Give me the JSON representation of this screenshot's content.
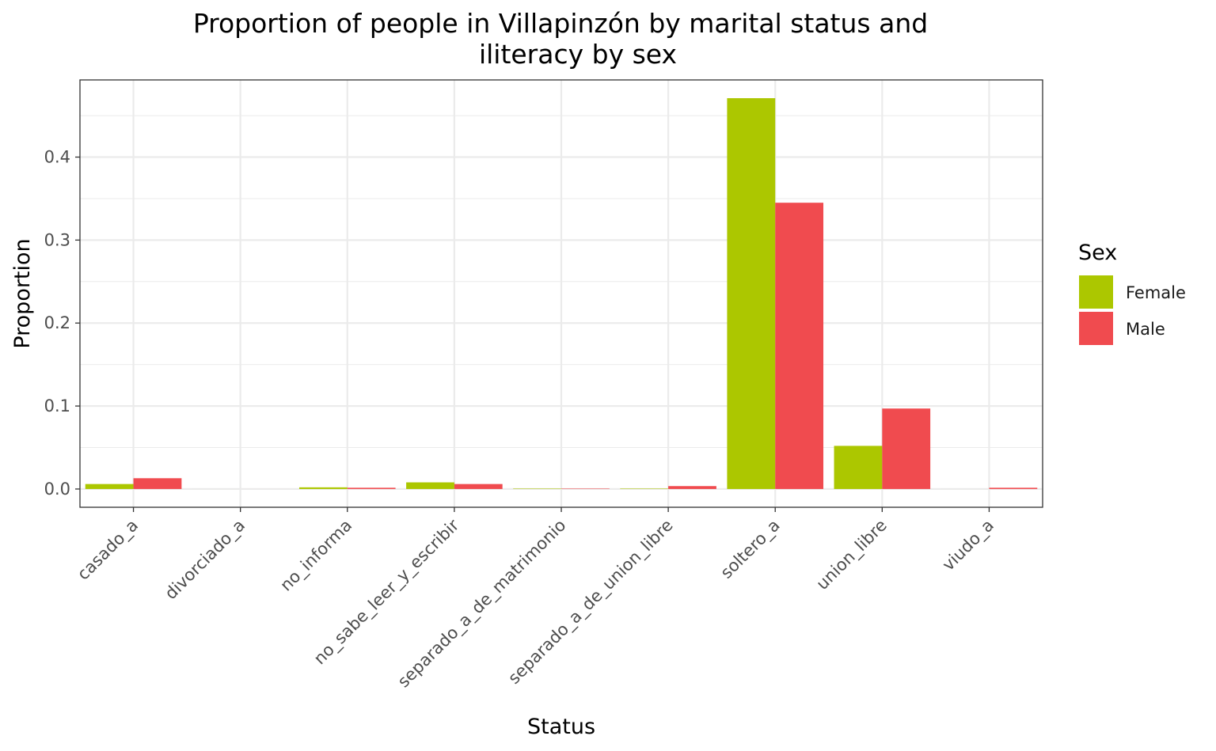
{
  "chart_data": {
    "type": "bar",
    "title_lines": [
      "Proportion of people in Villapinzón by marital status and",
      "iliteracy by sex"
    ],
    "xlabel": "Status",
    "ylabel": "Proportion",
    "categories": [
      "casado_a",
      "divorciado_a",
      "no_informa",
      "no_sabe_leer_y_escribir",
      "separado_a_de_matrimonio",
      "separado_a_de_union_libre",
      "soltero_a",
      "union_libre",
      "viudo_a"
    ],
    "series": [
      {
        "name": "Female",
        "color": "#acc700",
        "values": [
          0.006,
          0.0,
          0.002,
          0.008,
          0.0005,
          0.0005,
          0.471,
          0.052,
          0.0
        ]
      },
      {
        "name": "Male",
        "color": "#f04b4f",
        "values": [
          0.013,
          0.0,
          0.0015,
          0.006,
          0.0005,
          0.0035,
          0.345,
          0.097,
          0.0015
        ]
      }
    ],
    "ylim": [
      -0.022,
      0.493
    ],
    "yticks": [
      0.0,
      0.1,
      0.2,
      0.3,
      0.4
    ],
    "ytick_labels": [
      "0.0",
      "0.1",
      "0.2",
      "0.3",
      "0.4"
    ],
    "legend": {
      "title": "Sex",
      "position": "right"
    },
    "grid": true
  }
}
